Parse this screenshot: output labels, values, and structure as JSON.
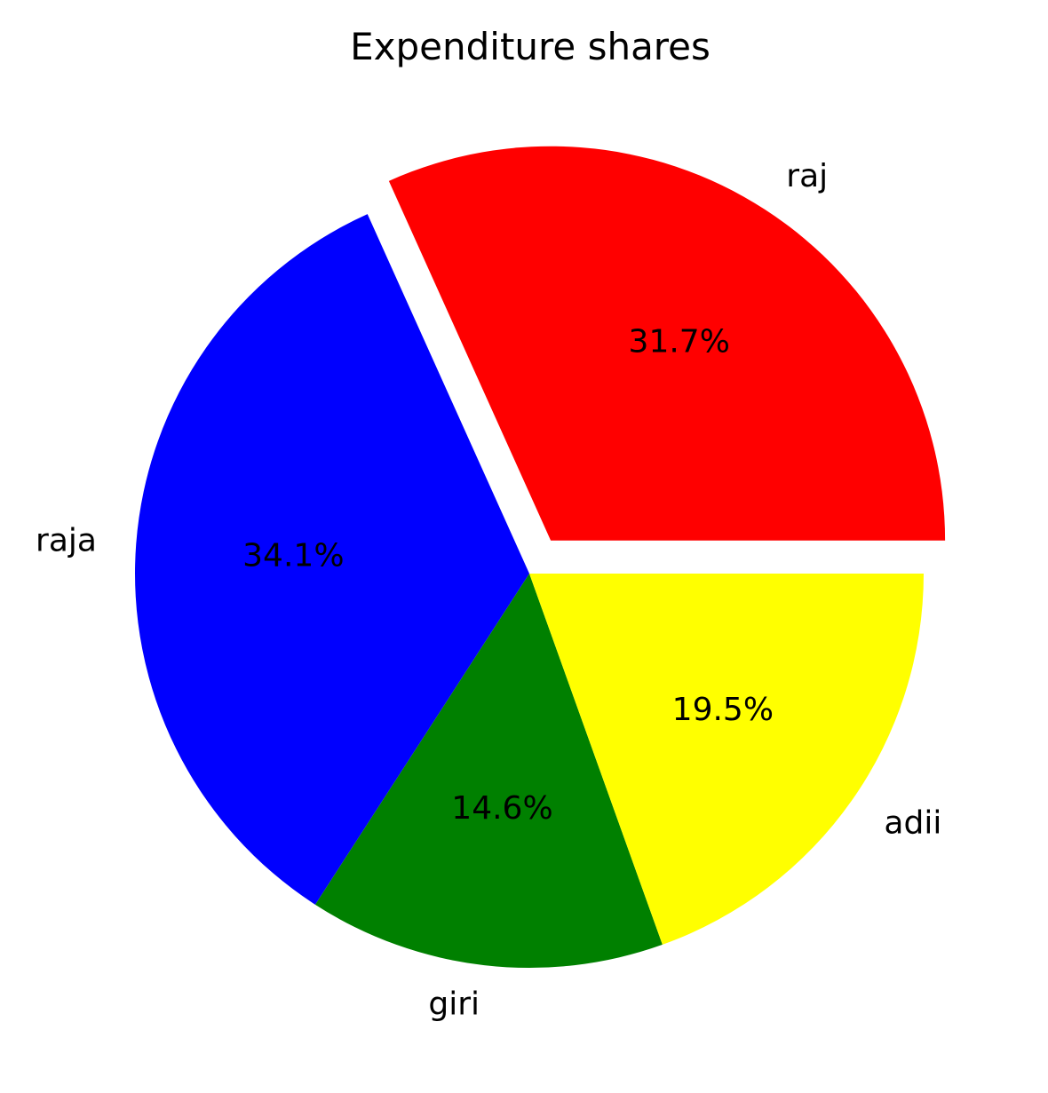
{
  "chart_data": {
    "type": "pie",
    "title": "Expenditure shares",
    "categories": [
      "raj",
      "raja",
      "giri",
      "adii"
    ],
    "values": [
      31.7,
      34.1,
      14.6,
      19.5
    ],
    "percent_labels": [
      "31.7%",
      "34.1%",
      "14.6%",
      "19.5%"
    ],
    "colors": [
      "#ff0000",
      "#0000ff",
      "#008000",
      "#ffff00"
    ],
    "exploded": [
      true,
      false,
      false,
      false
    ],
    "start_angle_deg": 0,
    "direction": "counterclockwise"
  }
}
